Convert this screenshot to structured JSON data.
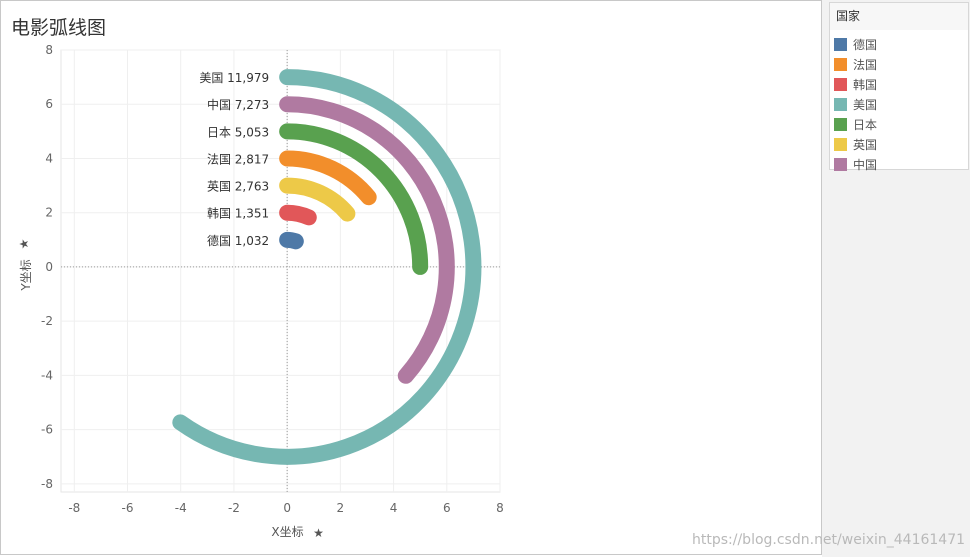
{
  "page": {
    "title": "电影弧线图",
    "watermark": "https://blog.csdn.net/weixin_44161471"
  },
  "legend": {
    "title": "国家",
    "items": [
      {
        "name": "德国",
        "color": "#4e79a7"
      },
      {
        "name": "法国",
        "color": "#f28e2b"
      },
      {
        "name": "韩国",
        "color": "#e15759"
      },
      {
        "name": "美国",
        "color": "#76b7b2"
      },
      {
        "name": "日本",
        "color": "#59a14f"
      },
      {
        "name": "英国",
        "color": "#edc948"
      },
      {
        "name": "中国",
        "color": "#b07aa1"
      }
    ]
  },
  "chart_data": {
    "type": "arc",
    "title": "电影弧线图",
    "xlabel": "X坐标",
    "ylabel": "Y坐标",
    "xlim": [
      -8.5,
      8.0
    ],
    "ylim": [
      -8.3,
      8.0
    ],
    "xticks": [
      -8,
      -6,
      -4,
      -2,
      0,
      2,
      4,
      6,
      8
    ],
    "yticks": [
      8,
      6,
      4,
      2,
      0,
      -2,
      -4,
      -6,
      -8
    ],
    "grid": true,
    "series": [
      {
        "name": "美国",
        "value": 11979,
        "label": "美国 11,979",
        "radius": 7,
        "sweep_deg": 215,
        "color": "#76b7b2"
      },
      {
        "name": "中国",
        "value": 7273,
        "label": "中国 7,273",
        "radius": 6,
        "sweep_deg": 132,
        "color": "#b07aa1"
      },
      {
        "name": "日本",
        "value": 5053,
        "label": "日本 5,053",
        "radius": 5,
        "sweep_deg": 90,
        "color": "#59a14f"
      },
      {
        "name": "法国",
        "value": 2817,
        "label": "法国 2,817",
        "radius": 4,
        "sweep_deg": 50,
        "color": "#f28e2b"
      },
      {
        "name": "英国",
        "value": 2763,
        "label": "英国 2,763",
        "radius": 3,
        "sweep_deg": 49,
        "color": "#edc948"
      },
      {
        "name": "韩国",
        "value": 1351,
        "label": "韩国 1,351",
        "radius": 2,
        "sweep_deg": 24,
        "color": "#e15759"
      },
      {
        "name": "德国",
        "value": 1032,
        "label": "德国 1,032",
        "radius": 1,
        "sweep_deg": 19,
        "color": "#4e79a7"
      }
    ]
  }
}
